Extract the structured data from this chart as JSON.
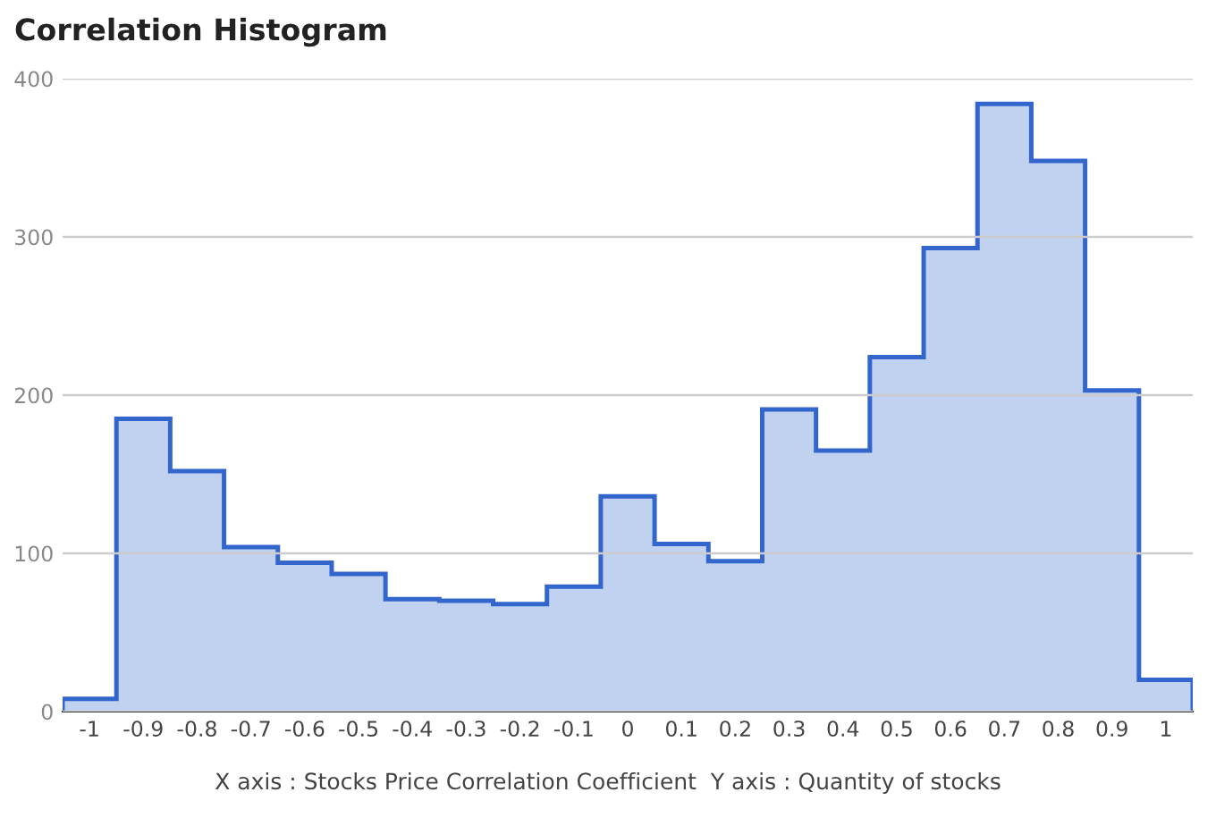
{
  "chart_data": {
    "type": "histogram",
    "title": "Correlation Histogram",
    "bins": [
      -1.05,
      -0.95,
      -0.85,
      -0.75,
      -0.65,
      -0.55,
      -0.45,
      -0.35,
      -0.25,
      -0.15,
      -0.05,
      0.05,
      0.15,
      0.25,
      0.35,
      0.45,
      0.55,
      0.65,
      0.75,
      0.85,
      0.95,
      1.05
    ],
    "values": [
      8,
      185,
      152,
      104,
      94,
      87,
      71,
      70,
      68,
      79,
      136,
      106,
      95,
      191,
      165,
      224,
      293,
      384,
      348,
      203,
      20
    ],
    "color": "#3366cc",
    "xlim": [
      -1.05,
      1.05
    ],
    "xticks": [
      -1,
      -0.9,
      -0.8,
      -0.7,
      -0.6,
      -0.5,
      -0.4,
      -0.3,
      -0.2,
      -0.1,
      0,
      0.1,
      0.2,
      0.3,
      0.4,
      0.5,
      0.6,
      0.7,
      0.8,
      0.9,
      1
    ],
    "ylim": [
      0,
      400
    ],
    "yticks": [
      0,
      100,
      200,
      300,
      400
    ],
    "grid": "y",
    "annotations": [
      "X axis : Stocks Price Correlation Coefficient  Y axis : Quantity of stocks"
    ]
  }
}
